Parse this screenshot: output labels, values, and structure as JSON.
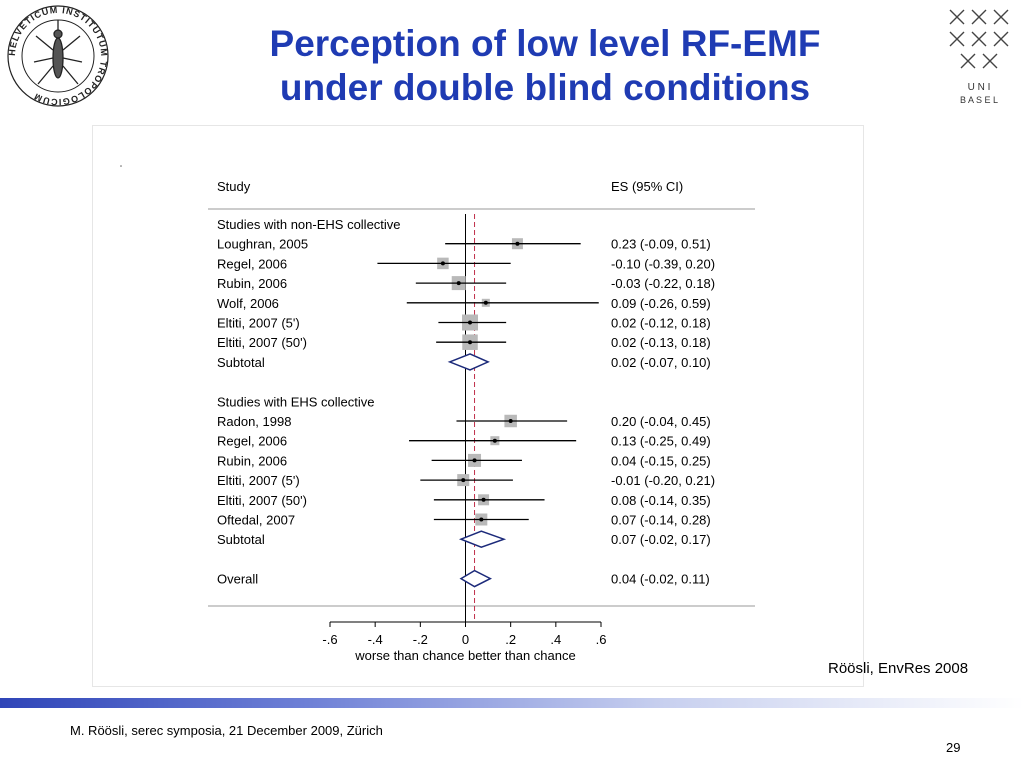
{
  "slide": {
    "title_line1": "Perception of low level RF-EMF",
    "title_line2": "under double blind conditions",
    "citation": "Röösli, EnvRes 2008",
    "footer": "M. Röösli, serec symposia, 21 December 2009, Zürich",
    "page_number": "29",
    "logo_right_text": [
      "U N I",
      "B A S E L"
    ],
    "logo_left_ring_text": "HELVETICUM INSTITUTUM TROPOLOGICUM"
  },
  "colors": {
    "title": "#1f3bb3",
    "diamond": "#1c2a7a",
    "reference_line": "#c0304a",
    "marker_box": "#b9b9b9"
  },
  "chart_data": {
    "type": "forest",
    "headers": {
      "study": "Study",
      "es": "ES (95% CI)"
    },
    "xlim": [
      -0.6,
      0.6
    ],
    "x_ticks": [
      -0.6,
      -0.4,
      -0.2,
      0,
      0.2,
      0.4,
      0.6
    ],
    "x_tick_labels": [
      "-.6",
      "-.4",
      "-.2",
      "0",
      ".2",
      ".4",
      ".6"
    ],
    "xlabel": "worse than chance better than chance",
    "null_line": 0,
    "overall_line": 0.04,
    "rows": [
      {
        "kind": "header",
        "label": "Studies with non-EHS collective"
      },
      {
        "kind": "study",
        "label": "Loughran, 2005",
        "es": 0.23,
        "lo": -0.09,
        "hi": 0.51,
        "weight": 1.0,
        "ci_text": "0.23 (-0.09, 0.51)"
      },
      {
        "kind": "study",
        "label": "Regel, 2006",
        "es": -0.1,
        "lo": -0.39,
        "hi": 0.2,
        "weight": 1.1,
        "ci_text": "-0.10 (-0.39, 0.20)"
      },
      {
        "kind": "study",
        "label": "Rubin, 2006",
        "es": -0.03,
        "lo": -0.22,
        "hi": 0.18,
        "weight": 1.6,
        "ci_text": "-0.03 (-0.22, 0.18)"
      },
      {
        "kind": "study",
        "label": "Wolf, 2006",
        "es": 0.09,
        "lo": -0.26,
        "hi": 0.59,
        "weight": 0.4,
        "ci_text": "0.09 (-0.26, 0.59)"
      },
      {
        "kind": "study",
        "label": "Eltiti, 2007 (5')",
        "es": 0.02,
        "lo": -0.12,
        "hi": 0.18,
        "weight": 2.0,
        "ci_text": "0.02 (-0.12, 0.18)"
      },
      {
        "kind": "study",
        "label": "Eltiti, 2007 (50')",
        "es": 0.02,
        "lo": -0.13,
        "hi": 0.18,
        "weight": 1.9,
        "ci_text": "0.02 (-0.13, 0.18)"
      },
      {
        "kind": "subtotal",
        "label": "Subtotal",
        "es": 0.02,
        "lo": -0.07,
        "hi": 0.1,
        "ci_text": "0.02 (-0.07, 0.10)"
      },
      {
        "kind": "blank"
      },
      {
        "kind": "header",
        "label": "Studies with EHS collective"
      },
      {
        "kind": "study",
        "label": "Radon, 1998",
        "es": 0.2,
        "lo": -0.04,
        "hi": 0.45,
        "weight": 1.3,
        "ci_text": "0.20 (-0.04, 0.45)"
      },
      {
        "kind": "study",
        "label": "Regel, 2006",
        "es": 0.13,
        "lo": -0.25,
        "hi": 0.49,
        "weight": 0.6,
        "ci_text": "0.13 (-0.25, 0.49)"
      },
      {
        "kind": "study",
        "label": "Rubin, 2006",
        "es": 0.04,
        "lo": -0.15,
        "hi": 0.25,
        "weight": 1.4,
        "ci_text": "0.04 (-0.15, 0.25)"
      },
      {
        "kind": "study",
        "label": "Eltiti, 2007 (5')",
        "es": -0.01,
        "lo": -0.2,
        "hi": 0.21,
        "weight": 1.2,
        "ci_text": "-0.01 (-0.20, 0.21)"
      },
      {
        "kind": "study",
        "label": "Eltiti, 2007 (50')",
        "es": 0.08,
        "lo": -0.14,
        "hi": 0.35,
        "weight": 1.0,
        "ci_text": "0.08 (-0.14, 0.35)"
      },
      {
        "kind": "study",
        "label": "Oftedal, 2007",
        "es": 0.07,
        "lo": -0.14,
        "hi": 0.28,
        "weight": 1.2,
        "ci_text": "0.07 (-0.14, 0.28)"
      },
      {
        "kind": "subtotal",
        "label": "Subtotal",
        "es": 0.07,
        "lo": -0.02,
        "hi": 0.17,
        "ci_text": "0.07 (-0.02, 0.17)"
      },
      {
        "kind": "blank"
      },
      {
        "kind": "overall",
        "label": "Overall",
        "es": 0.04,
        "lo": -0.02,
        "hi": 0.11,
        "ci_text": "0.04 (-0.02, 0.11)"
      }
    ]
  }
}
